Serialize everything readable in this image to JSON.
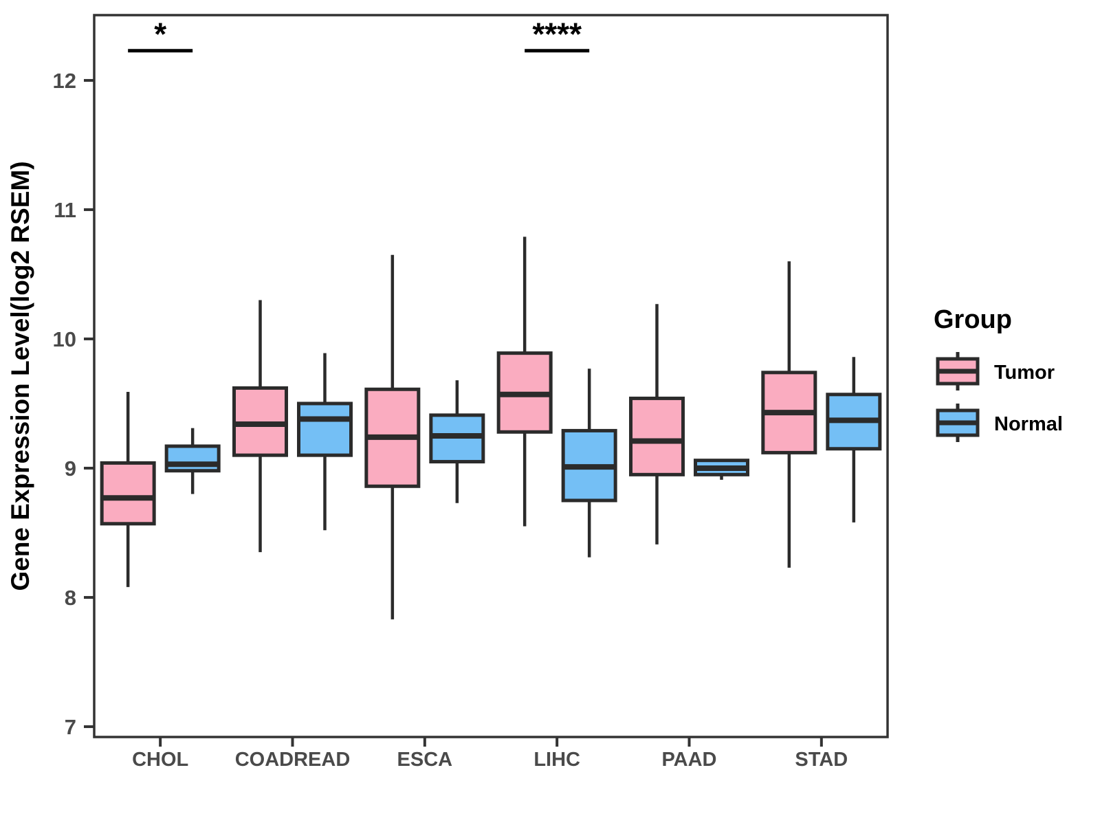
{
  "chart_data": {
    "type": "boxplot",
    "title": "",
    "xlabel": "",
    "ylabel": "Gene Expression Level(log2 RSEM)",
    "ylim": [
      6.92,
      12.505
    ],
    "yticks": [
      7,
      8,
      9,
      10,
      11,
      12
    ],
    "grid": "off",
    "categories": [
      "CHOL",
      "COADREAD",
      "ESCA",
      "LIHC",
      "PAAD",
      "STAD"
    ],
    "legend": {
      "title": "Group",
      "position": "right",
      "entries": [
        {
          "label": "Tumor",
          "color": "#FAACC0"
        },
        {
          "label": "Normal",
          "color": "#74BFF5"
        }
      ]
    },
    "series": [
      {
        "name": "Tumor",
        "color": "#FAACC0",
        "boxes": [
          {
            "category": "CHOL",
            "low": 8.08,
            "q1": 8.57,
            "median": 8.77,
            "q3": 9.04,
            "high": 9.59
          },
          {
            "category": "COADREAD",
            "low": 8.35,
            "q1": 9.1,
            "median": 9.34,
            "q3": 9.62,
            "high": 10.3
          },
          {
            "category": "ESCA",
            "low": 7.83,
            "q1": 8.86,
            "median": 9.24,
            "q3": 9.61,
            "high": 10.65
          },
          {
            "category": "LIHC",
            "low": 8.55,
            "q1": 9.28,
            "median": 9.57,
            "q3": 9.89,
            "high": 10.79
          },
          {
            "category": "PAAD",
            "low": 8.41,
            "q1": 8.95,
            "median": 9.21,
            "q3": 9.54,
            "high": 10.27
          },
          {
            "category": "STAD",
            "low": 8.23,
            "q1": 9.12,
            "median": 9.43,
            "q3": 9.74,
            "high": 10.6
          }
        ]
      },
      {
        "name": "Normal",
        "color": "#74BFF5",
        "boxes": [
          {
            "category": "CHOL",
            "low": 8.8,
            "q1": 8.98,
            "median": 9.03,
            "q3": 9.17,
            "high": 9.31
          },
          {
            "category": "COADREAD",
            "low": 8.52,
            "q1": 9.1,
            "median": 9.38,
            "q3": 9.5,
            "high": 9.89
          },
          {
            "category": "ESCA",
            "low": 8.73,
            "q1": 9.05,
            "median": 9.25,
            "q3": 9.41,
            "high": 9.68
          },
          {
            "category": "LIHC",
            "low": 8.31,
            "q1": 8.75,
            "median": 9.01,
            "q3": 9.29,
            "high": 9.77
          },
          {
            "category": "PAAD",
            "low": 8.91,
            "q1": 8.95,
            "median": 9.0,
            "q3": 9.06,
            "high": 9.06
          },
          {
            "category": "STAD",
            "low": 8.58,
            "q1": 9.15,
            "median": 9.37,
            "q3": 9.57,
            "high": 9.86
          }
        ]
      }
    ],
    "annotations": [
      {
        "category": "CHOL",
        "label": "*",
        "bar_value": 12.23
      },
      {
        "category": "LIHC",
        "label": "****",
        "bar_value": 12.23
      }
    ],
    "style": {
      "box_line_color": "#2B2B2B",
      "panel_border_color": "#333333"
    }
  }
}
